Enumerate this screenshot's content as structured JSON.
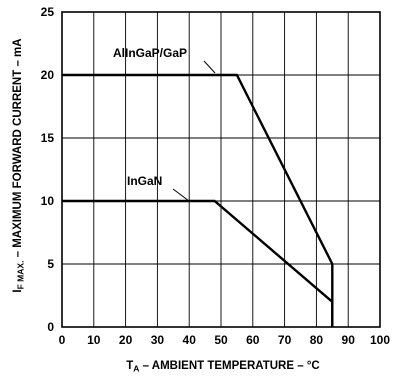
{
  "chart_data": {
    "type": "line",
    "x_axis": {
      "label_main": "T",
      "label_sub": "A",
      "label_rest": " – AMBIENT TEMPERATURE – °C",
      "range": [
        0,
        100
      ],
      "ticks": [
        "0",
        "10",
        "20",
        "30",
        "40",
        "50",
        "60",
        "70",
        "80",
        "90",
        "100"
      ]
    },
    "y_axis": {
      "label_main": "I",
      "label_sub": "F MAX.",
      "label_rest": " – MAXIMUM FORWARD CURRENT – mA",
      "range": [
        0,
        25
      ],
      "ticks": [
        "0",
        "5",
        "10",
        "15",
        "20",
        "25"
      ]
    },
    "grid": true,
    "series": [
      {
        "name": "AlInGaP/GaP",
        "x": [
          0,
          55,
          85,
          85
        ],
        "y": [
          20,
          20,
          5,
          0
        ]
      },
      {
        "name": "InGaN",
        "x": [
          0,
          48,
          85,
          85
        ],
        "y": [
          10,
          10,
          2,
          0
        ]
      }
    ]
  }
}
